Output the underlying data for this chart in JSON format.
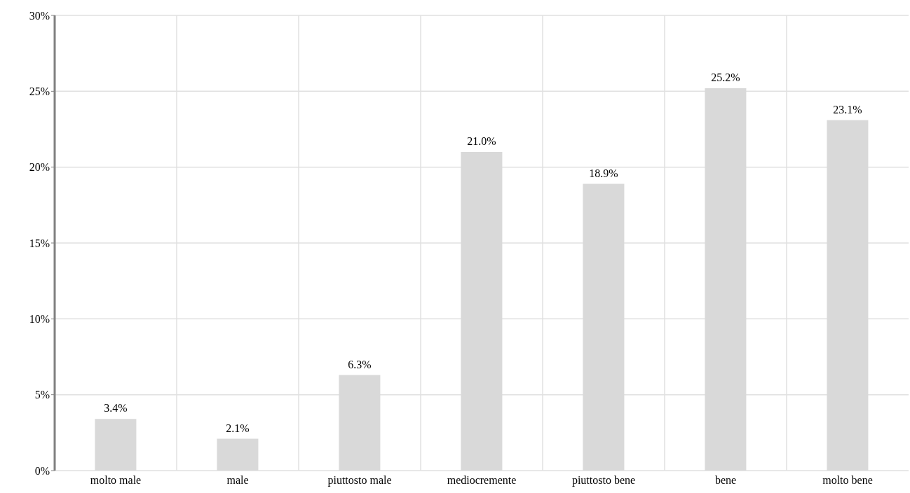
{
  "chart_data": {
    "type": "bar",
    "categories": [
      "molto male",
      "male",
      "piuttosto male",
      "mediocremente",
      "piuttosto bene",
      "bene",
      "molto bene"
    ],
    "values": [
      3.4,
      2.1,
      6.3,
      21.0,
      18.9,
      25.2,
      23.1
    ],
    "value_labels": [
      "3.4%",
      "2.1%",
      "6.3%",
      "21.0%",
      "18.9%",
      "25.2%",
      "23.1%"
    ],
    "color": "#d9d9d9",
    "ylim": [
      0,
      30
    ],
    "yticks": [
      {
        "value": 0,
        "label": "0%"
      },
      {
        "value": 5,
        "label": "5%"
      },
      {
        "value": 10,
        "label": "10%"
      },
      {
        "value": 15,
        "label": "15%"
      },
      {
        "value": 20,
        "label": "20%"
      },
      {
        "value": 25,
        "label": "25%"
      },
      {
        "value": 30,
        "label": "30%"
      }
    ],
    "grid": true
  }
}
